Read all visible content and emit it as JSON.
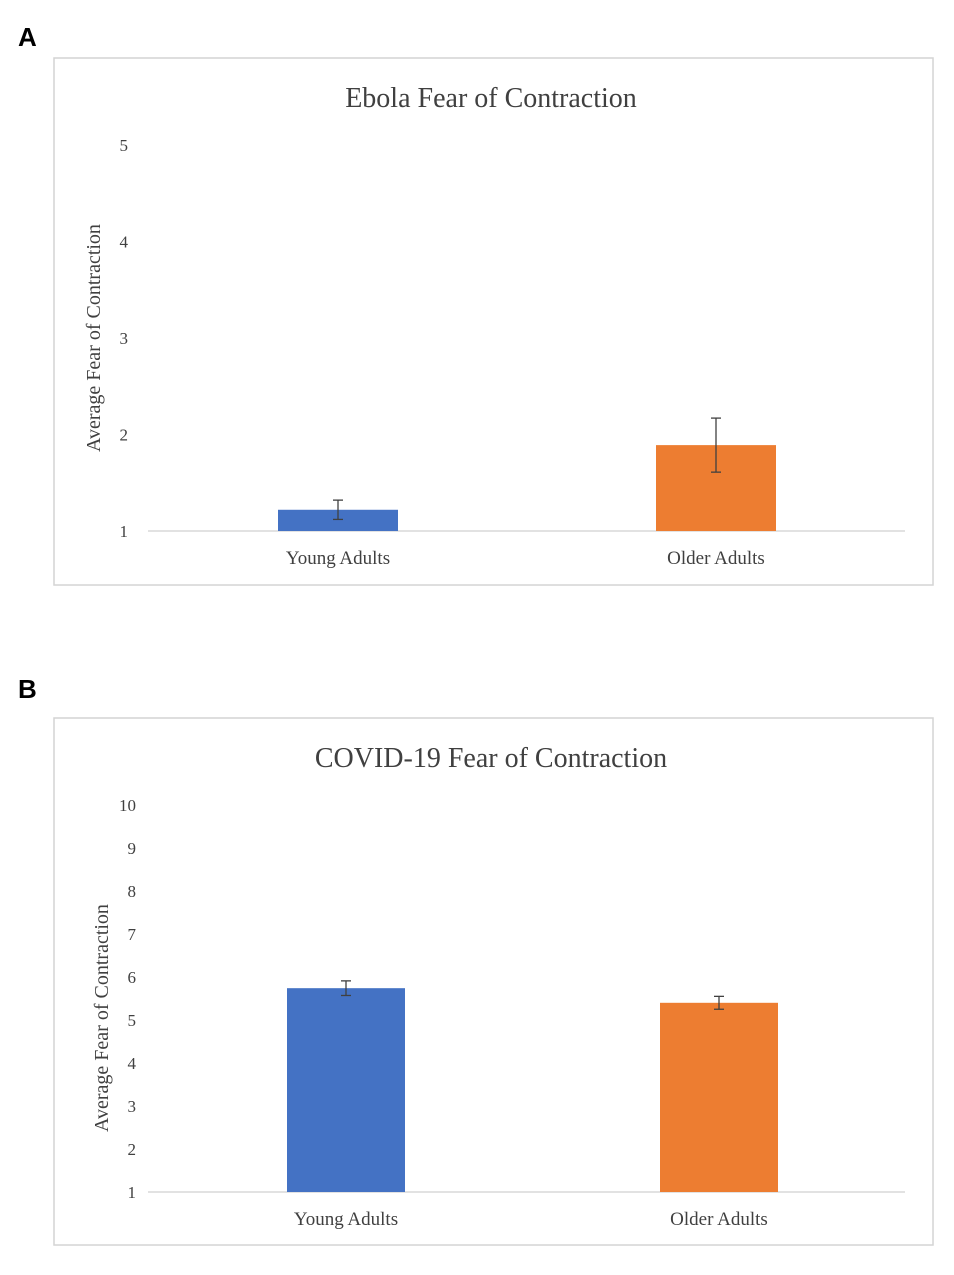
{
  "panels": [
    {
      "letter": "A"
    },
    {
      "letter": "B"
    }
  ],
  "chart_data": [
    {
      "type": "bar",
      "title": "Ebola Fear of Contraction",
      "xlabel": "",
      "ylabel": "Average Fear of Contraction",
      "ylim": [
        1,
        5
      ],
      "yticks": [
        1,
        2,
        3,
        4,
        5
      ],
      "categories": [
        "Young Adults",
        "Older Adults"
      ],
      "values": [
        1.22,
        1.89
      ],
      "error": [
        0.1,
        0.28
      ],
      "colors": [
        "#4472C4",
        "#ED7D31"
      ]
    },
    {
      "type": "bar",
      "title": "COVID-19 Fear of Contraction",
      "xlabel": "",
      "ylabel": "Average Fear of Contraction",
      "ylim": [
        1,
        10
      ],
      "yticks": [
        1,
        2,
        3,
        4,
        5,
        6,
        7,
        8,
        9,
        10
      ],
      "categories": [
        "Young Adults",
        "Older Adults"
      ],
      "values": [
        5.74,
        5.4
      ],
      "error": [
        0.17,
        0.15
      ],
      "colors": [
        "#4472C4",
        "#ED7D31"
      ]
    }
  ]
}
